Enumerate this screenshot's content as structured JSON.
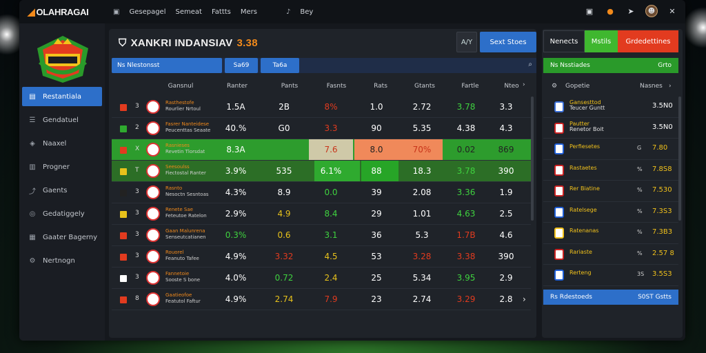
{
  "app": {
    "logo_text": "OLAHRAGAI",
    "top_nav": [
      "Gesepagel",
      "Semeat",
      "Fattts",
      "Mers"
    ],
    "top_nav_extra": "Bey"
  },
  "sidebar": {
    "items": [
      {
        "label": "Restantiala",
        "icon": "home-icon",
        "active": true
      },
      {
        "label": "Gendatuel",
        "icon": "list-icon",
        "active": false
      },
      {
        "label": "Naaxel",
        "icon": "tag-icon",
        "active": false
      },
      {
        "label": "Progner",
        "icon": "chart-icon",
        "active": false
      },
      {
        "label": "Gaents",
        "icon": "share-icon",
        "active": false
      },
      {
        "label": "Gedatiggely",
        "icon": "location-icon",
        "active": false
      },
      {
        "label": "Gaater Bagerny",
        "icon": "calendar-icon",
        "active": false
      },
      {
        "label": "Nertnogn",
        "icon": "settings-icon",
        "active": false
      }
    ]
  },
  "main": {
    "title": "XANKRI INDANSIAV",
    "score": "3.38",
    "small_btn": "A/Y",
    "blue_btn": "Sext Stoes",
    "filters": [
      "Ns Nlestonsst",
      "Sa69",
      "Ta6a"
    ],
    "headers": [
      "Gansnul",
      "Ranter",
      "Pants",
      "Fasnts",
      "Rats",
      "Gtants",
      "Fartle",
      "Nteo"
    ],
    "rows": [
      {
        "flag": "#e23b1f",
        "num": "3",
        "n1": "Rasthestofe",
        "n2": "Rourlier Nrtoul",
        "c": [
          "1.5A",
          "2B",
          "8%",
          "1.0",
          "2.72",
          "3.78",
          "3.3"
        ],
        "cc": [
          "#fff",
          "#fff",
          "#e23b1f",
          "#fff",
          "#fff",
          "#3fd23f",
          "#fff"
        ]
      },
      {
        "flag": "#2faa2f",
        "num": "2",
        "n1": "Fasrer Nanteidese",
        "n2": "Peucenttas Seaate",
        "c": [
          "40.%",
          "G0",
          "3.3",
          "90",
          "5.35",
          "4.38",
          "4.3"
        ],
        "cc": [
          "#fff",
          "#fff",
          "#e23b1f",
          "#fff",
          "#fff",
          "#fff",
          "#fff"
        ]
      },
      {
        "flag": "#e23b1f",
        "num": "X",
        "n1": "Rasnieses",
        "n2": "Revetin Tlorsdat",
        "c": [
          "8.3A",
          "",
          "7.6",
          "8.0",
          "70%",
          "0.02",
          "869"
        ],
        "cc": [
          "#fff",
          "#fff",
          "#ff6a1b",
          "#fff",
          "#fff",
          "#222",
          "#222"
        ],
        "hl": "green"
      },
      {
        "flag": "#e8c21b",
        "num": "T",
        "n1": "Seesoulss",
        "n2": "Fiectostal Ranter",
        "c": [
          "3.9%",
          "535",
          "6.1%",
          "88",
          "18.3",
          "3.78",
          "390"
        ],
        "cc": [
          "#fff",
          "#fff",
          "#fff",
          "#fff",
          "#fff",
          "#3fd23f",
          "#fff"
        ],
        "hl": "lgreen"
      },
      {
        "flag": "#222",
        "num": "3",
        "n1": "Rasnto",
        "n2": "Nesoctn Sesntoas",
        "c": [
          "4.3%",
          "8.9",
          "0.0",
          "39",
          "2.08",
          "3.36",
          "1.9"
        ],
        "cc": [
          "#fff",
          "#fff",
          "#3fd23f",
          "#fff",
          "#fff",
          "#3fd23f",
          "#fff"
        ]
      },
      {
        "flag": "#e8c21b",
        "num": "3",
        "n1": "Renete Sae",
        "n2": "Feteutoe Ratelon",
        "c": [
          "2.9%",
          "4.9",
          "8.4",
          "29",
          "1.01",
          "4.63",
          "2.5"
        ],
        "cc": [
          "#fff",
          "#e8c21b",
          "#3fd23f",
          "#fff",
          "#fff",
          "#3fd23f",
          "#fff"
        ]
      },
      {
        "flag": "#e23b1f",
        "num": "3",
        "n1": "Gaan Malunrena",
        "n2": "Senseutcatianen",
        "c": [
          "0.3%",
          "0.6",
          "3.1",
          "36",
          "5.3",
          "1.7B",
          "4.6"
        ],
        "cc": [
          "#3fd23f",
          "#e8c21b",
          "#3fd23f",
          "#fff",
          "#fff",
          "#e23b1f",
          "#fff"
        ]
      },
      {
        "flag": "#e23b1f",
        "num": "3",
        "n1": "Rouorel",
        "n2": "Feanuto Tafee",
        "c": [
          "4.9%",
          "3.32",
          "4.5",
          "53",
          "3.28",
          "3.38",
          "390"
        ],
        "cc": [
          "#fff",
          "#e23b1f",
          "#e8c21b",
          "#fff",
          "#e23b1f",
          "#e23b1f",
          "#fff"
        ]
      },
      {
        "flag": "#fff",
        "num": "3",
        "n1": "Fannetoie",
        "n2": "Sooste S bone",
        "c": [
          "4.0%",
          "0.72",
          "2.4",
          "25",
          "5.34",
          "3.95",
          "2.9"
        ],
        "cc": [
          "#fff",
          "#3fd23f",
          "#e8c21b",
          "#fff",
          "#fff",
          "#3fd23f",
          "#fff"
        ]
      },
      {
        "flag": "#e23b1f",
        "num": "8",
        "n1": "Gaatieofoe",
        "n2": "Featutol Faftur",
        "c": [
          "4.9%",
          "2.74",
          "7.9",
          "23",
          "2.74",
          "3.29",
          "2.8"
        ],
        "cc": [
          "#fff",
          "#e8c21b",
          "#e23b1f",
          "#fff",
          "#fff",
          "#e23b1f",
          "#fff"
        ]
      }
    ]
  },
  "right": {
    "tabs": [
      {
        "label": "Nenects",
        "bg": "#1f2329",
        "color": "#fff"
      },
      {
        "label": "Mstils",
        "bg": "#3fb72f",
        "color": "#fff"
      },
      {
        "label": "Grdedettines",
        "bg": "#e23b1f",
        "color": "#fff"
      }
    ],
    "filter_left": "Ns Nsstiades",
    "filter_right": "Grto",
    "headers": [
      "Gopetie",
      "Nasnes"
    ],
    "rows": [
      {
        "name1": "Gansesttod",
        "name2": "Teucer Guntt",
        "pct": "",
        "val": "3.5N0",
        "vw": true
      },
      {
        "name1": "Pautter",
        "name2": "Renetor Boit",
        "pct": "",
        "val": "3.5N0",
        "vw": true
      },
      {
        "name1": "Perfiesetes",
        "name2": "",
        "pct": "G",
        "val": "7.80",
        "vw": false
      },
      {
        "name1": "Rastaetes",
        "name2": "",
        "pct": "%",
        "val": "7.8S8",
        "vw": false
      },
      {
        "name1": "Rer Biatine",
        "name2": "",
        "pct": "%",
        "val": "7.530",
        "vw": false
      },
      {
        "name1": "Ratelsege",
        "name2": "",
        "pct": "%",
        "val": "7.3S3",
        "vw": false
      },
      {
        "name1": "Ratenanas",
        "name2": "",
        "pct": "%",
        "val": "7.3B3",
        "vw": false
      },
      {
        "name1": "Rariaste",
        "name2": "",
        "pct": "%",
        "val": "2.57 8",
        "vw": false
      },
      {
        "name1": "Rerteng",
        "name2": "",
        "pct": "3S",
        "val": "3.5S3",
        "vw": false
      }
    ],
    "foot_left": "Rs Rdestoeds",
    "foot_right": "S0ST Gstts"
  }
}
